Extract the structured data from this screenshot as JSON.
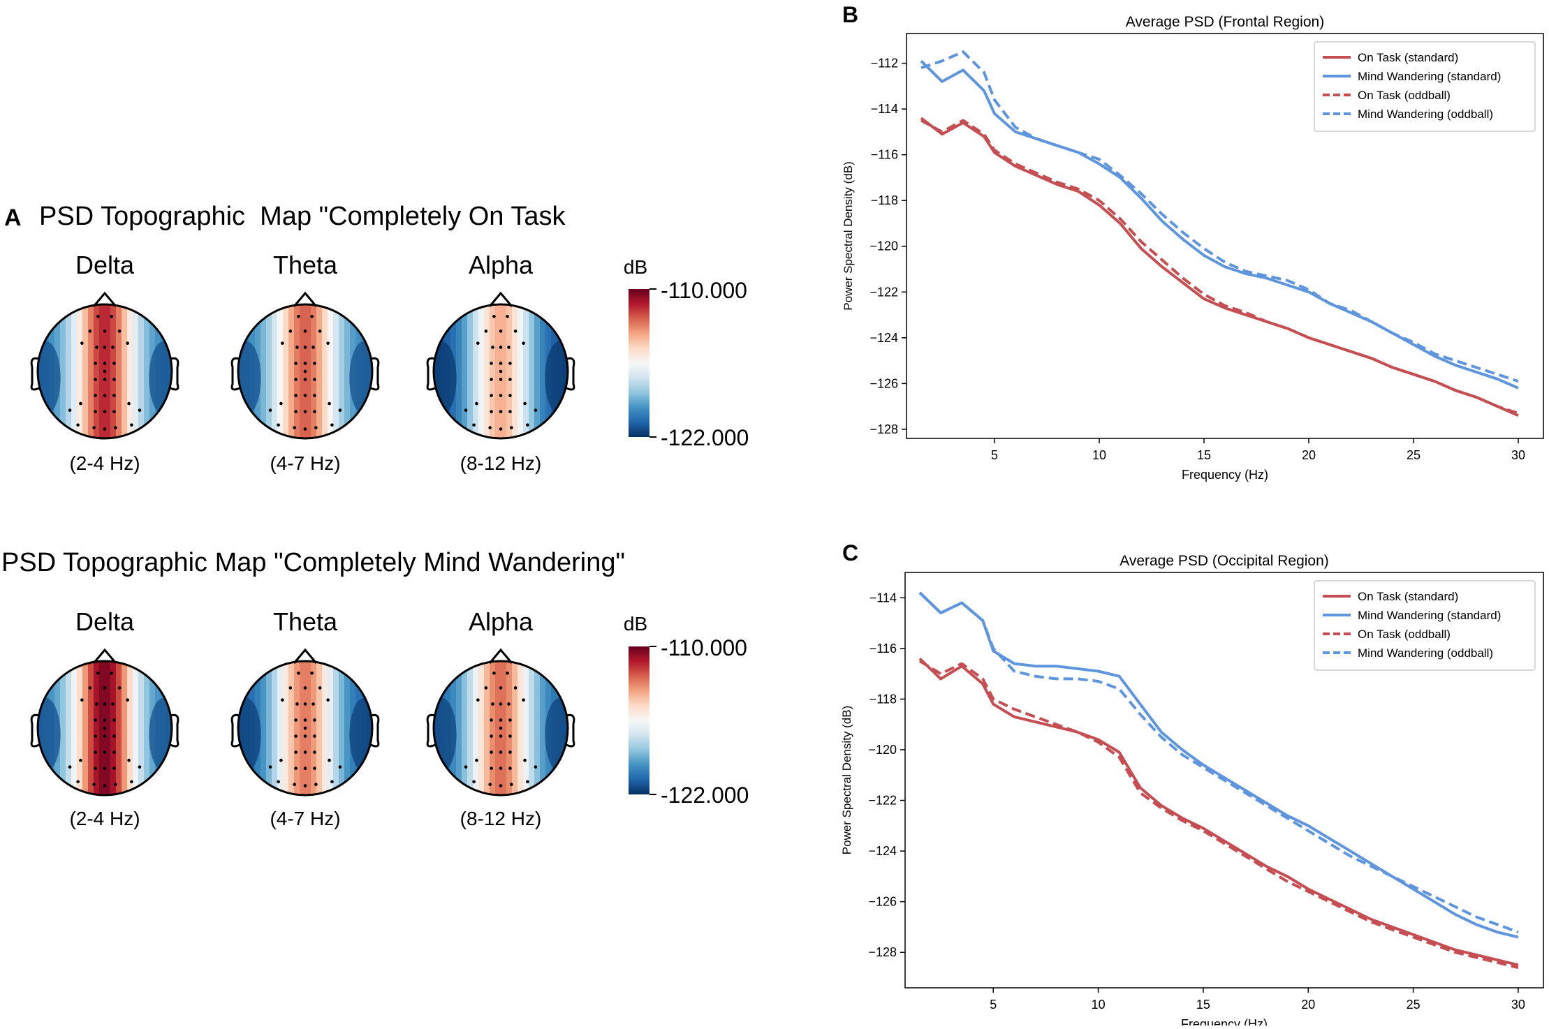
{
  "panel_a": {
    "letter": "A",
    "title_on_task": "PSD Topographic  Map \"Completely On Task",
    "title_mind_wandering": "PSD Topographic Map \"Completely Mind Wandering\"",
    "colorbar": {
      "unit": "dB",
      "max_label": "-110.000",
      "min_label": "-122.000",
      "colors": [
        "#053061",
        "#2166ac",
        "#4393c3",
        "#92c5de",
        "#d1e5f0",
        "#f7f7f7",
        "#fddbc7",
        "#f4a582",
        "#d6604d",
        "#b2182b",
        "#67001f"
      ]
    },
    "bands": [
      {
        "name": "Delta",
        "range": "(2-4 Hz)"
      },
      {
        "name": "Theta",
        "range": "(4-7 Hz)"
      },
      {
        "name": "Alpha",
        "range": "(8-12 Hz)"
      }
    ],
    "maps": {
      "on_task": [
        {
          "band": "Delta",
          "center_level": 0.88,
          "edge_level": 0.15
        },
        {
          "band": "Theta",
          "center_level": 0.8,
          "edge_level": 0.15
        },
        {
          "band": "Alpha",
          "center_level": 0.68,
          "edge_level": 0.05
        }
      ],
      "mind_wandering": [
        {
          "band": "Delta",
          "center_level": 0.97,
          "edge_level": 0.15
        },
        {
          "band": "Theta",
          "center_level": 0.76,
          "edge_level": 0.08
        },
        {
          "band": "Alpha",
          "center_level": 0.78,
          "edge_level": 0.1
        }
      ]
    }
  },
  "chart_data": [
    {
      "panel_letter": "B",
      "type": "line",
      "title": "Average PSD (Frontal Region)",
      "xlabel": "Frequency (Hz)",
      "ylabel": "Power Spectral Density (dB)",
      "xlim": [
        0.8,
        31.2
      ],
      "ylim": [
        -128.4,
        -110.7
      ],
      "xticks": [
        5,
        10,
        15,
        20,
        25,
        30
      ],
      "yticks": [
        -112,
        -114,
        -116,
        -118,
        -120,
        -122,
        -124,
        -126,
        -128
      ],
      "legend_position": "top-right",
      "x": [
        1.5,
        2.5,
        3.5,
        4.5,
        5,
        6,
        7,
        8,
        9,
        10,
        11,
        12,
        13,
        14,
        15,
        16,
        17,
        18,
        19,
        20,
        21,
        22,
        23,
        24,
        25,
        26,
        27,
        28,
        29,
        30
      ],
      "series": [
        {
          "name": "On Task (standard)",
          "color": "#c44e52",
          "style": "solid",
          "values": [
            -114.4,
            -115.1,
            -114.6,
            -115.2,
            -115.9,
            -116.5,
            -116.9,
            -117.3,
            -117.6,
            -118.2,
            -119.0,
            -120.1,
            -120.9,
            -121.6,
            -122.3,
            -122.7,
            -123.0,
            -123.3,
            -123.6,
            -124.0,
            -124.3,
            -124.6,
            -124.9,
            -125.3,
            -125.6,
            -125.9,
            -126.3,
            -126.6,
            -127.0,
            -127.4
          ]
        },
        {
          "name": "Mind Wandering (standard)",
          "color": "#5e95dc",
          "style": "solid",
          "values": [
            -111.9,
            -112.8,
            -112.3,
            -113.2,
            -114.2,
            -115.0,
            -115.3,
            -115.6,
            -115.9,
            -116.4,
            -117.0,
            -117.9,
            -118.9,
            -119.7,
            -120.4,
            -120.9,
            -121.2,
            -121.4,
            -121.7,
            -122.0,
            -122.5,
            -122.9,
            -123.3,
            -123.8,
            -124.3,
            -124.8,
            -125.2,
            -125.5,
            -125.8,
            -126.2
          ]
        },
        {
          "name": "On Task (oddball)",
          "color": "#c44e52",
          "style": "dashed",
          "values": [
            -114.5,
            -115.0,
            -114.5,
            -115.1,
            -115.8,
            -116.4,
            -116.8,
            -117.2,
            -117.5,
            -118.0,
            -118.8,
            -119.8,
            -120.6,
            -121.4,
            -122.1,
            -122.6,
            -122.9,
            -123.3,
            -123.6,
            -124.0,
            -124.3,
            -124.6,
            -124.9,
            -125.3,
            -125.6,
            -125.9,
            -126.3,
            -126.6,
            -127.0,
            -127.3
          ]
        },
        {
          "name": "Mind Wandering (oddball)",
          "color": "#5e95dc",
          "style": "dashed",
          "values": [
            -112.2,
            -111.9,
            -111.5,
            -112.4,
            -113.6,
            -114.8,
            -115.3,
            -115.6,
            -115.9,
            -116.2,
            -116.9,
            -117.7,
            -118.6,
            -119.4,
            -120.1,
            -120.7,
            -121.1,
            -121.3,
            -121.5,
            -121.9,
            -122.5,
            -122.8,
            -123.3,
            -123.8,
            -124.2,
            -124.7,
            -125.0,
            -125.3,
            -125.6,
            -125.9
          ]
        }
      ]
    },
    {
      "panel_letter": "C",
      "type": "line",
      "title": "Average PSD (Occipital Region)",
      "xlabel": "Frequency (Hz)",
      "ylabel": "Power Spectral Density (dB)",
      "xlim": [
        0.8,
        31.2
      ],
      "ylim": [
        -129.4,
        -113.0
      ],
      "xticks": [
        5,
        10,
        15,
        20,
        25,
        30
      ],
      "yticks": [
        -114,
        -116,
        -118,
        -120,
        -122,
        -124,
        -126,
        -128
      ],
      "legend_position": "top-right",
      "x": [
        1.5,
        2.5,
        3.5,
        4.5,
        5,
        6,
        7,
        8,
        9,
        10,
        11,
        12,
        13,
        14,
        15,
        16,
        17,
        18,
        19,
        20,
        21,
        22,
        23,
        24,
        25,
        26,
        27,
        28,
        29,
        30
      ],
      "series": [
        {
          "name": "On Task (standard)",
          "color": "#c44e52",
          "style": "solid",
          "values": [
            -116.4,
            -117.2,
            -116.7,
            -117.4,
            -118.2,
            -118.7,
            -118.9,
            -119.1,
            -119.3,
            -119.6,
            -120.1,
            -121.5,
            -122.2,
            -122.7,
            -123.1,
            -123.6,
            -124.1,
            -124.6,
            -125.0,
            -125.5,
            -125.9,
            -126.3,
            -126.7,
            -127.0,
            -127.3,
            -127.6,
            -127.9,
            -128.1,
            -128.3,
            -128.5
          ]
        },
        {
          "name": "Mind Wandering (standard)",
          "color": "#5e95dc",
          "style": "solid",
          "values": [
            -113.8,
            -114.6,
            -114.2,
            -114.9,
            -116.1,
            -116.6,
            -116.7,
            -116.7,
            -116.8,
            -116.9,
            -117.1,
            -118.2,
            -119.3,
            -120.0,
            -120.6,
            -121.1,
            -121.6,
            -122.1,
            -122.6,
            -123.0,
            -123.5,
            -124.0,
            -124.5,
            -125.0,
            -125.5,
            -126.0,
            -126.5,
            -126.9,
            -127.2,
            -127.4
          ]
        },
        {
          "name": "On Task (oddball)",
          "color": "#c44e52",
          "style": "dashed",
          "values": [
            -116.5,
            -117.0,
            -116.6,
            -117.2,
            -118.0,
            -118.4,
            -118.7,
            -119.0,
            -119.3,
            -119.7,
            -120.3,
            -121.7,
            -122.3,
            -122.8,
            -123.2,
            -123.7,
            -124.2,
            -124.7,
            -125.2,
            -125.6,
            -126.0,
            -126.4,
            -126.8,
            -127.1,
            -127.4,
            -127.7,
            -128.0,
            -128.2,
            -128.4,
            -128.6
          ]
        },
        {
          "name": "Mind Wandering (oddball)",
          "color": "#5e95dc",
          "style": "dashed",
          "values": [
            -113.8,
            -114.6,
            -114.2,
            -114.9,
            -116.0,
            -116.9,
            -117.1,
            -117.2,
            -117.2,
            -117.3,
            -117.6,
            -118.6,
            -119.5,
            -120.2,
            -120.7,
            -121.2,
            -121.7,
            -122.2,
            -122.7,
            -123.2,
            -123.7,
            -124.2,
            -124.6,
            -125.0,
            -125.4,
            -125.8,
            -126.2,
            -126.6,
            -126.9,
            -127.2
          ]
        }
      ]
    }
  ]
}
